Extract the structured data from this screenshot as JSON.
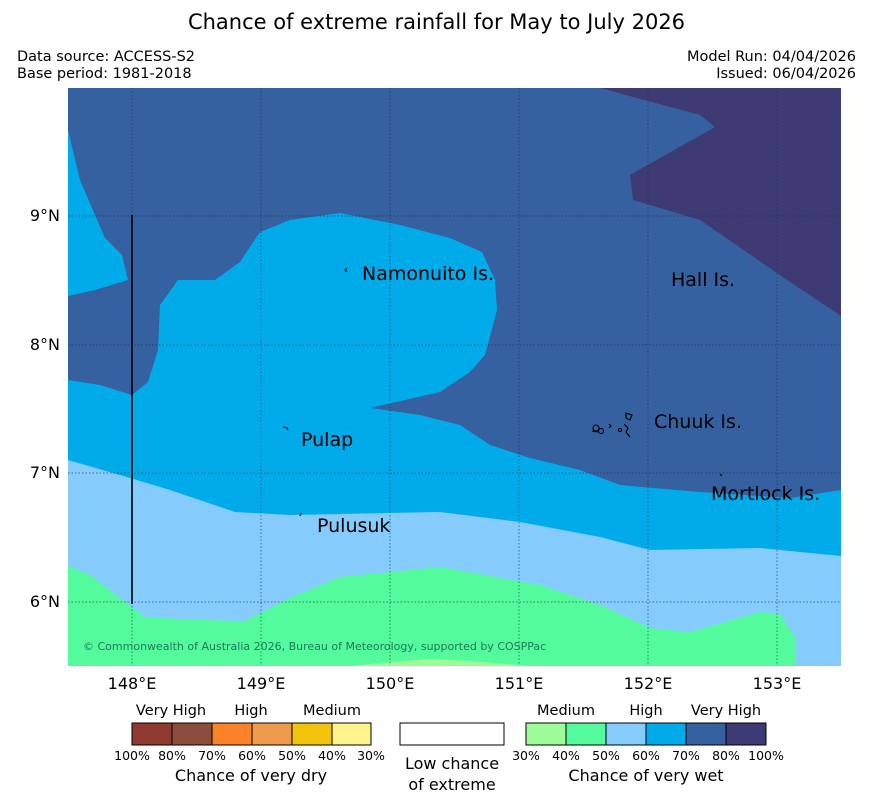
{
  "title": "Chance of extreme rainfall for May to July 2026",
  "meta": {
    "data_source": "Data source: ACCESS-S2",
    "base_period": "Base period: 1981-2018",
    "model_run": "Model Run: 04/04/2026",
    "issued": "Issued: 06/04/2026"
  },
  "axes": {
    "lat_labels": [
      "9°N",
      "8°N",
      "7°N",
      "6°N"
    ],
    "lon_labels": [
      "148°E",
      "149°E",
      "150°E",
      "151°E",
      "152°E",
      "153°E"
    ]
  },
  "places": {
    "namonuito": "Namonuito Is.",
    "hall": "Hall Is.",
    "chuuk": "Chuuk Is.",
    "pulap": "Pulap",
    "mortlock": "Mortlock Is.",
    "pulusuk": "Pulusuk"
  },
  "copyright": "© Commonwealth of Australia 2026, Bureau of Meteorology, supported by COSPPac",
  "legend": {
    "dry": {
      "categories": [
        "Very High",
        "High",
        "Medium"
      ],
      "percents": [
        "100%",
        "80%",
        "70%",
        "60%",
        "50%",
        "40%",
        "30%"
      ],
      "title": "Chance of very dry",
      "colors": [
        "#8e3a2e",
        "#8c4d3c",
        "#fb8228",
        "#ee9a4a",
        "#f1c40b",
        "#fdf58c"
      ]
    },
    "low": {
      "line1": "Low chance",
      "line2": "of extreme"
    },
    "wet": {
      "categories": [
        "Medium",
        "High",
        "Very High"
      ],
      "percents": [
        "30%",
        "40%",
        "50%",
        "60%",
        "70%",
        "80%",
        "100%"
      ],
      "title": "Chance of very wet",
      "colors": [
        "#9dfc97",
        "#53fb9c",
        "#85cbfb",
        "#01abea",
        "#3561a0",
        "#3e3b74"
      ]
    }
  }
}
